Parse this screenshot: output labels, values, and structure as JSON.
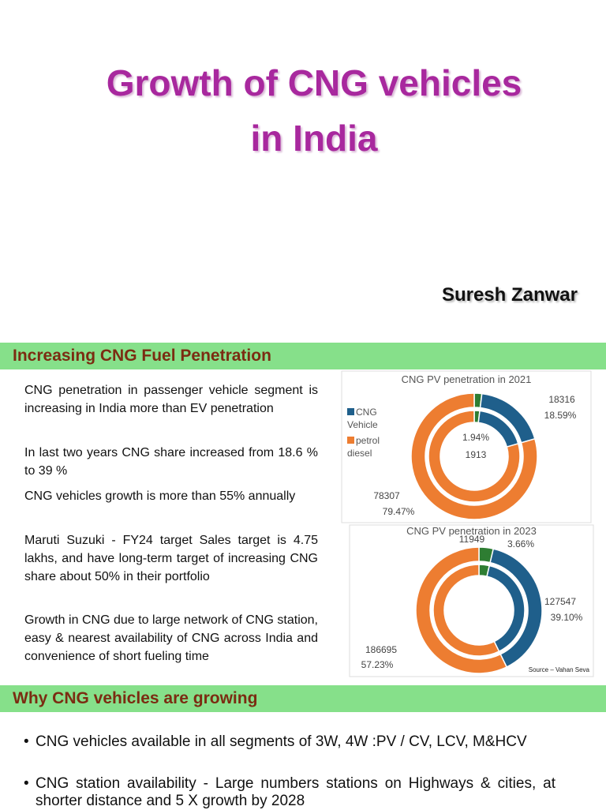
{
  "header": {
    "title_lines": [
      "Growth of CNG vehicles",
      "in India"
    ],
    "author": "Suresh Zanwar"
  },
  "section1": {
    "heading": "Increasing CNG Fuel Penetration",
    "paragraphs": [
      "CNG penetration in passenger vehicle segment is increasing in India more than EV penetration",
      "In last two years CNG share increased from 18.6 % to 39 %",
      "CNG vehicles growth is more than 55% annually",
      "Maruti Suzuki - FY24 target Sales target is 4.75 lakhs, and have long-term target of increasing CNG share about 50% in their portfolio",
      "Growth in CNG due to large network of CNG station, easy & nearest availability of CNG across India and convenience of short fueling time"
    ]
  },
  "chart_data": [
    {
      "type": "donut",
      "title": "CNG PV penetration in 2021",
      "categories": [
        null,
        "CNG Vehicle",
        "petrol diesel"
      ],
      "colors": [
        "#2e7d32",
        "#1f5f8b",
        "#ed7d31"
      ],
      "series": [
        {
          "values": [
            1913,
            18316,
            78307
          ]
        },
        {
          "values": [
            1.94,
            18.59,
            79.47
          ],
          "value_labels": [
            "1.94%",
            "18.59%",
            "79.47%"
          ]
        }
      ],
      "legend": true
    },
    {
      "type": "donut",
      "title": "CNG PV penetration in 2023",
      "categories": [
        null,
        null,
        null
      ],
      "colors": [
        "#2e7d32",
        "#1f5f8b",
        "#ed7d31"
      ],
      "series": [
        {
          "values": [
            11949,
            127547,
            186695
          ]
        },
        {
          "values": [
            3.66,
            39.1,
            57.23
          ],
          "value_labels": [
            "3.66%",
            "39.10%",
            "57.23%"
          ]
        }
      ],
      "legend": false,
      "source": "Source – Vahan Seva"
    }
  ],
  "section2": {
    "heading": "Why CNG vehicles are growing",
    "bullets": [
      "CNG vehicles available in all segments of 3W, 4W :PV / CV, LCV, M&HCV",
      "CNG station availability  - Large numbers stations on Highways & cities, at shorter distance and 5 X growth by 2028"
    ]
  }
}
